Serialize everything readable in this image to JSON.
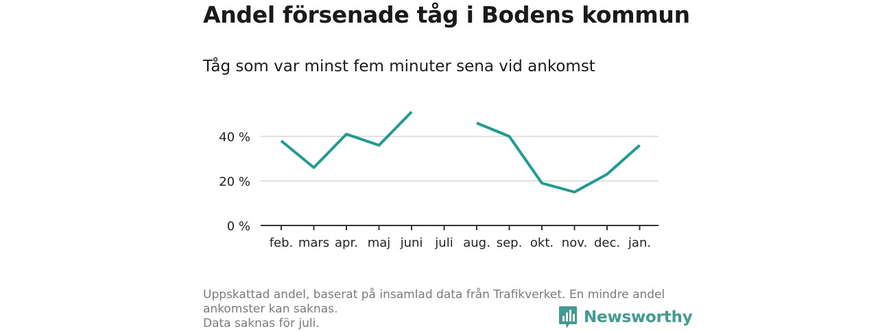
{
  "chart_data": {
    "type": "line",
    "title": "Andel försenade tåg i Bodens kommun",
    "subtitle": "Tåg som var minst fem minuter sena vid ankomst",
    "categories": [
      "feb.",
      "mars",
      "apr.",
      "maj",
      "juni",
      "juli",
      "aug.",
      "sep.",
      "okt.",
      "nov.",
      "dec.",
      "jan."
    ],
    "series": [
      {
        "values": [
          38,
          26,
          41,
          36,
          51,
          null,
          46,
          40,
          19,
          15,
          23,
          36
        ],
        "color": "#1a9e92"
      }
    ],
    "yticks": [
      {
        "value": 0,
        "label": "0 %"
      },
      {
        "value": 20,
        "label": "20 %"
      },
      {
        "value": 40,
        "label": "40 %"
      }
    ],
    "ylim": [
      0,
      52
    ],
    "grid": true,
    "legend": "none"
  },
  "footnote": {
    "line1": "Uppskattad andel, baserat på insamlad data från Trafikverket. En mindre andel",
    "line2": "ankomster kan saknas.",
    "line3": "Data saknas för juli."
  },
  "logo": {
    "text": "Newsworthy",
    "icon": "newsworthy-bar-chart-icon",
    "color": "#3d9d90"
  }
}
